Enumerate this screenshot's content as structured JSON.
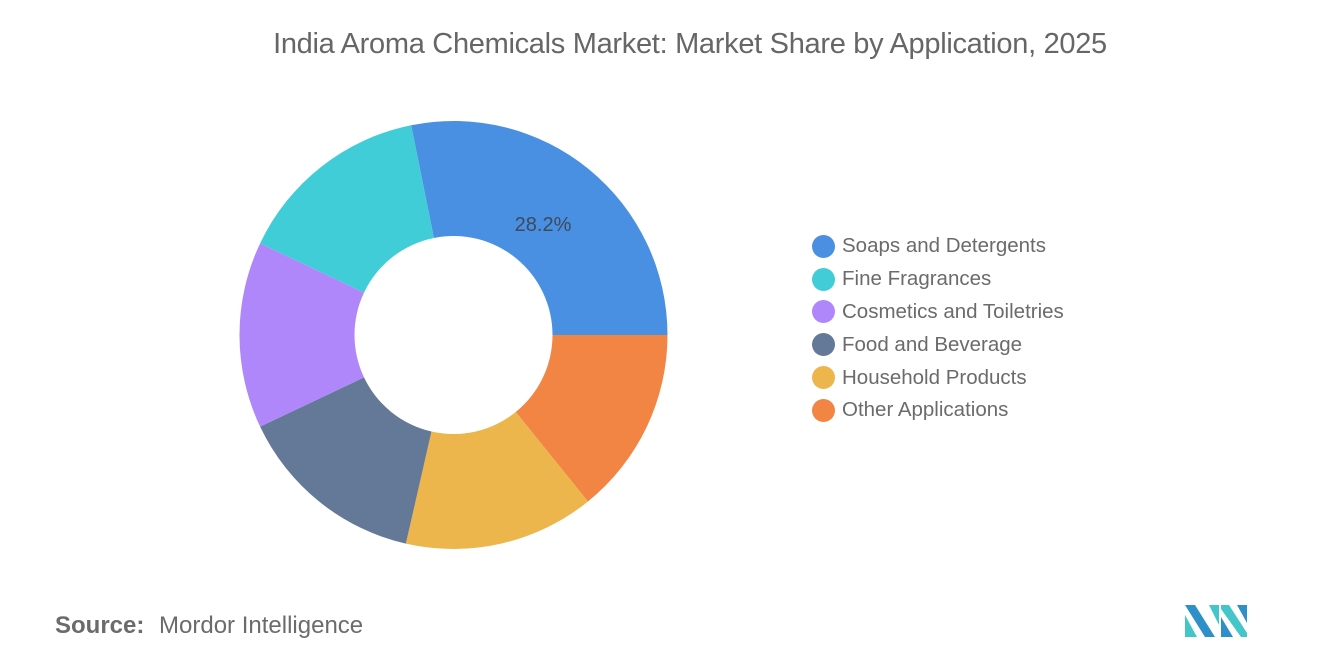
{
  "title": "India Aroma Chemicals Market: Market Share by Application, 2025",
  "source": {
    "label": "Source:",
    "value": "Mordor Intelligence"
  },
  "logo": {
    "name": "mordor-intelligence-logo",
    "colors": [
      "#2e8fc9",
      "#44c6c9"
    ]
  },
  "chart_data": {
    "type": "pie",
    "variant": "donut",
    "title": "India Aroma Chemicals Market: Market Share by Application, 2025",
    "categories": [
      "Soaps and Detergents",
      "Fine Fragrances",
      "Cosmetics and Toiletries",
      "Food and Beverage",
      "Household Products",
      "Other Applications"
    ],
    "values": [
      28.2,
      14.8,
      14.1,
      14.4,
      14.4,
      14.2
    ],
    "labeled_values": {
      "Soaps and Detergents": "28.2%"
    },
    "colors": [
      "#4a90e2",
      "#40cdd8",
      "#b086fb",
      "#647897",
      "#ecb64c",
      "#f28544"
    ],
    "legend_position": "right",
    "units": "%"
  },
  "legend": {
    "items": [
      {
        "label": "Soaps and Detergents",
        "color": "#4a90e2"
      },
      {
        "label": "Fine Fragrances",
        "color": "#40cdd8"
      },
      {
        "label": "Cosmetics and Toiletries",
        "color": "#b086fb"
      },
      {
        "label": "Food and Beverage",
        "color": "#647897"
      },
      {
        "label": "Household Products",
        "color": "#ecb64c"
      },
      {
        "label": "Other Applications",
        "color": "#f28544"
      }
    ]
  },
  "data_label": "28.2%"
}
